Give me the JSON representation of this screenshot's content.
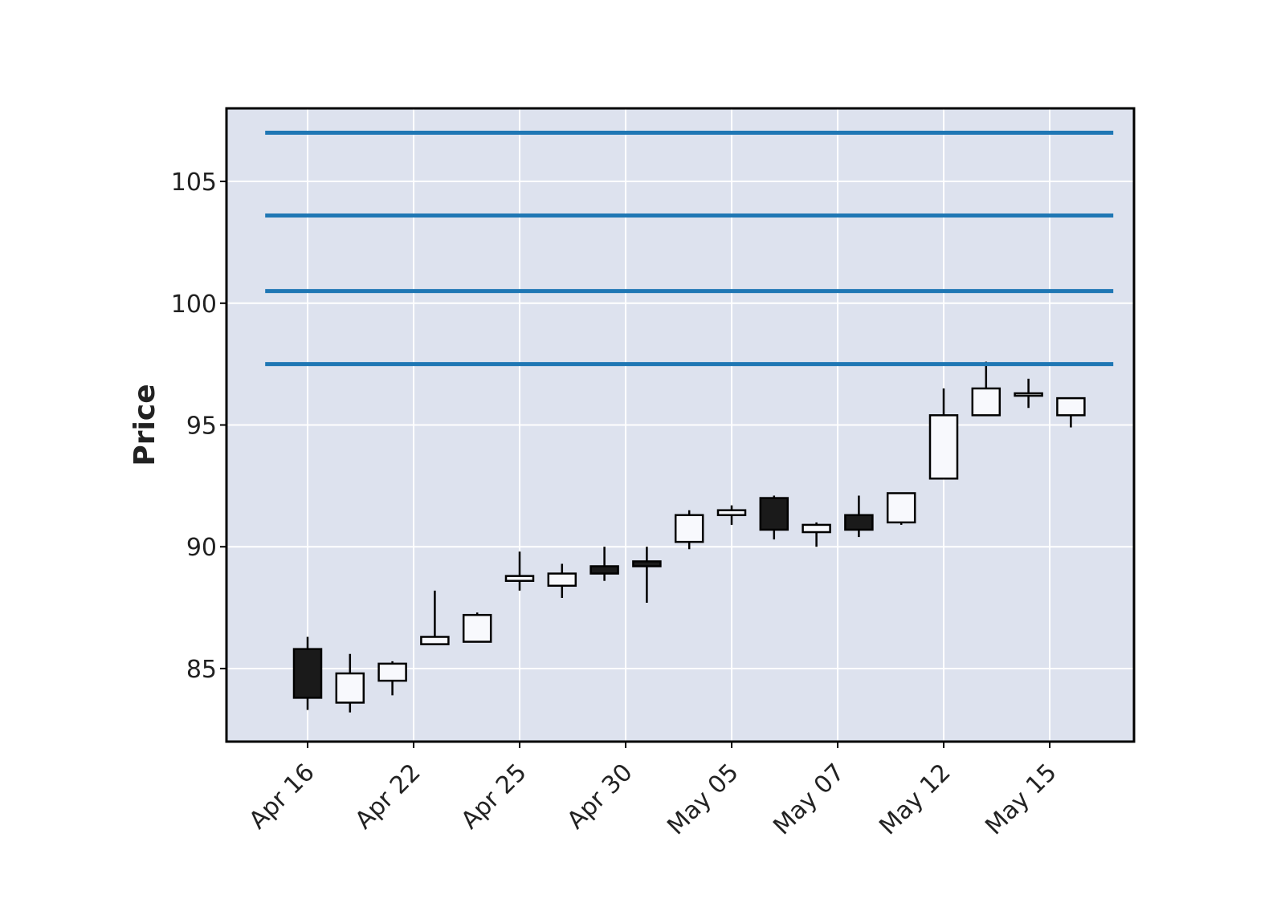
{
  "chart_data": {
    "type": "candlestick",
    "title": "",
    "xlabel": "",
    "ylabel": "Price",
    "ylim": [
      82,
      108
    ],
    "yticks": [
      85,
      90,
      95,
      100,
      105
    ],
    "ytick_labels": [
      "85",
      "90",
      "95",
      "100",
      "105"
    ],
    "xtick_labels": [
      "Apr 16",
      "Apr 22",
      "Apr 25",
      "Apr 30",
      "May 05",
      "May 07",
      "May 12",
      "May 15"
    ],
    "xtick_positions": [
      0,
      2.5,
      5,
      7.5,
      10,
      12.5,
      15,
      17.5
    ],
    "grid": true,
    "candles": [
      {
        "open": 85.8,
        "high": 86.3,
        "low": 83.3,
        "close": 83.8
      },
      {
        "open": 83.6,
        "high": 85.6,
        "low": 83.2,
        "close": 84.8
      },
      {
        "open": 84.5,
        "high": 85.3,
        "low": 83.9,
        "close": 85.2
      },
      {
        "open": 86.0,
        "high": 88.2,
        "low": 86.0,
        "close": 86.3
      },
      {
        "open": 86.1,
        "high": 87.3,
        "low": 86.1,
        "close": 87.2
      },
      {
        "open": 88.6,
        "high": 89.8,
        "low": 88.2,
        "close": 88.8
      },
      {
        "open": 88.4,
        "high": 89.3,
        "low": 87.9,
        "close": 88.9
      },
      {
        "open": 89.2,
        "high": 90.0,
        "low": 88.6,
        "close": 88.9
      },
      {
        "open": 89.4,
        "high": 90.0,
        "low": 87.7,
        "close": 89.2
      },
      {
        "open": 90.2,
        "high": 91.5,
        "low": 89.9,
        "close": 91.3
      },
      {
        "open": 91.3,
        "high": 91.7,
        "low": 90.9,
        "close": 91.5
      },
      {
        "open": 92.0,
        "high": 92.1,
        "low": 90.3,
        "close": 90.7
      },
      {
        "open": 90.6,
        "high": 91.0,
        "low": 90.0,
        "close": 90.9
      },
      {
        "open": 91.3,
        "high": 92.1,
        "low": 90.4,
        "close": 90.7
      },
      {
        "open": 91.0,
        "high": 92.2,
        "low": 90.9,
        "close": 92.2
      },
      {
        "open": 92.8,
        "high": 96.5,
        "low": 92.8,
        "close": 95.4
      },
      {
        "open": 95.4,
        "high": 97.6,
        "low": 95.4,
        "close": 96.5
      },
      {
        "open": 96.2,
        "high": 96.9,
        "low": 95.7,
        "close": 96.3
      },
      {
        "open": 95.4,
        "high": 96.1,
        "low": 94.9,
        "close": 96.1
      }
    ],
    "hlines": [
      107.0,
      103.6,
      100.5,
      97.5
    ],
    "colors": {
      "up_fill": "#f8f9fd",
      "down_fill": "#1a1a1a",
      "edge": "#000000",
      "hline": "#1f77b4",
      "plot_bg": "#dde2ee",
      "grid": "#ffffff",
      "frame": "#000000"
    }
  }
}
